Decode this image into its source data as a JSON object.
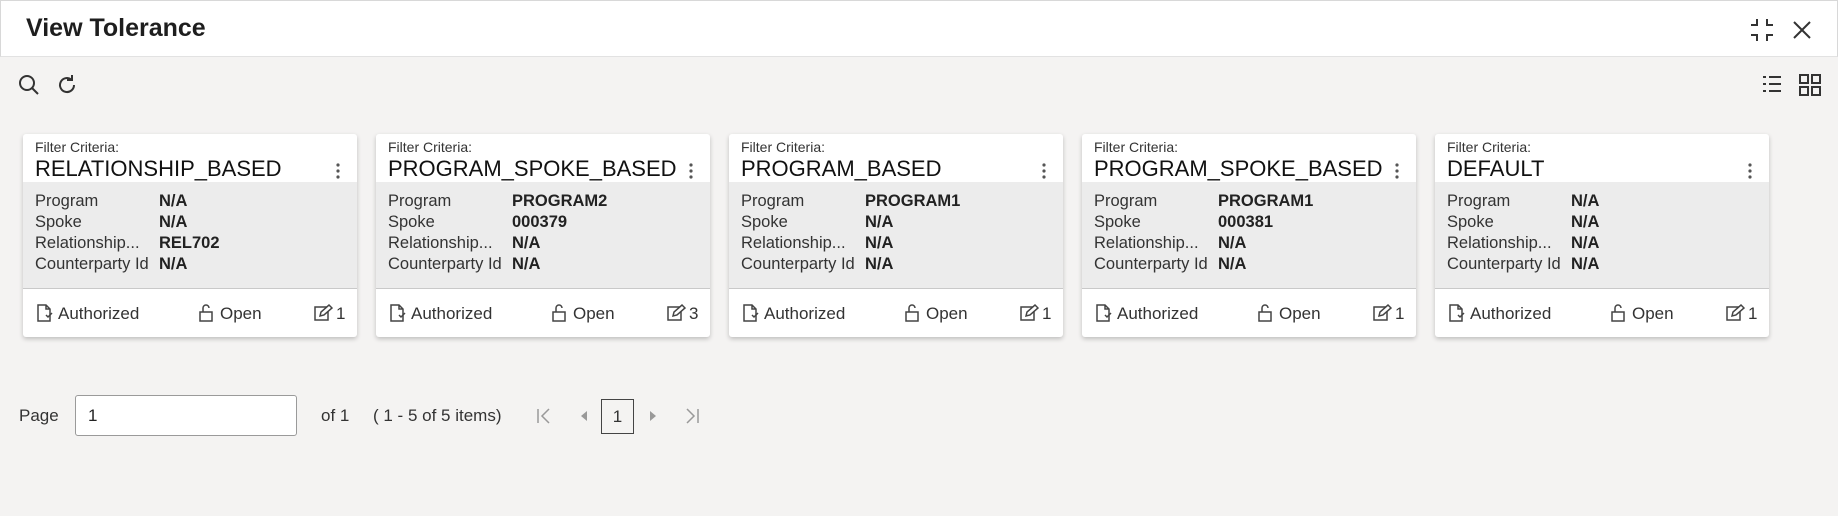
{
  "header": {
    "title": "View Tolerance"
  },
  "cards": [
    {
      "filter_label": "Filter Criteria:",
      "title": "RELATIONSHIP_BASED",
      "fields": [
        {
          "label": "Program",
          "value": "N/A"
        },
        {
          "label": "Spoke",
          "value": "N/A"
        },
        {
          "label": "Relationship...",
          "value": "REL702"
        },
        {
          "label": "Counterparty Id",
          "value": "N/A"
        }
      ],
      "status": "Authorized",
      "lock": "Open",
      "count": "1"
    },
    {
      "filter_label": "Filter Criteria:",
      "title": "PROGRAM_SPOKE_BASED",
      "fields": [
        {
          "label": "Program",
          "value": "PROGRAM2"
        },
        {
          "label": "Spoke",
          "value": "000379"
        },
        {
          "label": "Relationship...",
          "value": "N/A"
        },
        {
          "label": "Counterparty Id",
          "value": "N/A"
        }
      ],
      "status": "Authorized",
      "lock": "Open",
      "count": "3"
    },
    {
      "filter_label": "Filter Criteria:",
      "title": "PROGRAM_BASED",
      "fields": [
        {
          "label": "Program",
          "value": "PROGRAM1"
        },
        {
          "label": "Spoke",
          "value": "N/A"
        },
        {
          "label": "Relationship...",
          "value": "N/A"
        },
        {
          "label": "Counterparty Id",
          "value": "N/A"
        }
      ],
      "status": "Authorized",
      "lock": "Open",
      "count": "1"
    },
    {
      "filter_label": "Filter Criteria:",
      "title": "PROGRAM_SPOKE_BASED",
      "fields": [
        {
          "label": "Program",
          "value": "PROGRAM1"
        },
        {
          "label": "Spoke",
          "value": "000381"
        },
        {
          "label": "Relationship...",
          "value": "N/A"
        },
        {
          "label": "Counterparty Id",
          "value": "N/A"
        }
      ],
      "status": "Authorized",
      "lock": "Open",
      "count": "1"
    },
    {
      "filter_label": "Filter Criteria:",
      "title": "DEFAULT",
      "fields": [
        {
          "label": "Program",
          "value": "N/A"
        },
        {
          "label": "Spoke",
          "value": "N/A"
        },
        {
          "label": "Relationship...",
          "value": "N/A"
        },
        {
          "label": "Counterparty Id",
          "value": "N/A"
        }
      ],
      "status": "Authorized",
      "lock": "Open",
      "count": "1"
    }
  ],
  "pagination": {
    "page_label": "Page",
    "page_value": "1",
    "of_label": "of 1",
    "items_label": "( 1 - 5 of 5 items)",
    "current_page": "1"
  }
}
